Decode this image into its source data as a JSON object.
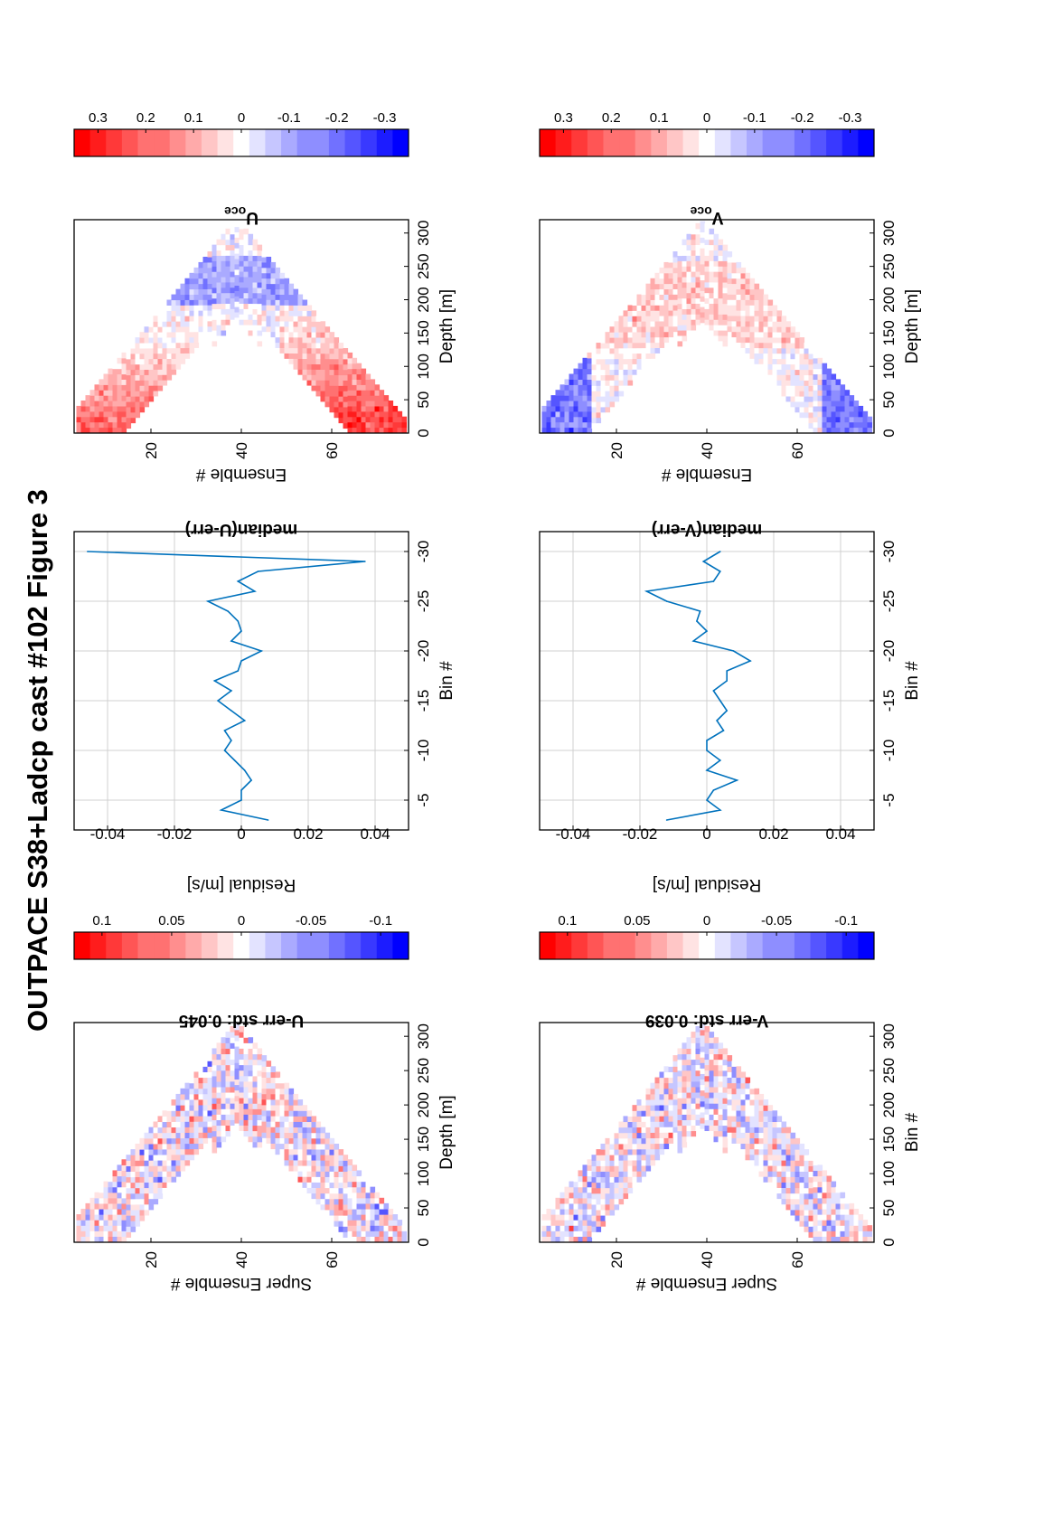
{
  "figure_title": "OUTPACE S38+Ladcp cast #102  Figure 3",
  "colors": {
    "positive": "#ff0000",
    "negative": "#0000ff",
    "zero": "#ffffff",
    "line": "#0072bd",
    "grid": "#d0d0d0"
  },
  "chart_data": [
    {
      "id": "u_err",
      "type": "heatmap",
      "title": "U-err std: 0.045",
      "xlabel": "Super Ensemble #",
      "ylabel": "Depth [m]",
      "xticks": [
        "20",
        "40",
        "60"
      ],
      "yticks": [
        "0",
        "50",
        "100",
        "150",
        "200",
        "250",
        "300"
      ],
      "xlim": [
        3,
        77
      ],
      "ylim": [
        0,
        320
      ],
      "y_reversed": true,
      "profile": "v-shape, max depth ~310 m at ensemble 39",
      "colorbar": {
        "ticks": [
          "0.1",
          "0.05",
          "0",
          "-0.05",
          "-0.1"
        ],
        "limits": [
          0.12,
          -0.12
        ]
      }
    },
    {
      "id": "u_median",
      "type": "line",
      "title": "median(U-err)",
      "xlabel": "Residual [m/s]",
      "ylabel": "Bin #",
      "xticks": [
        "-0.04",
        "-0.02",
        "0",
        "0.02",
        "0.04"
      ],
      "yticks": [
        "-5",
        "-10",
        "-15",
        "-20",
        "-25",
        "-30"
      ],
      "xlim": [
        -0.05,
        0.05
      ],
      "ylim": [
        -2,
        -32
      ],
      "grid": true,
      "x": [
        0.008,
        -0.006,
        0.0,
        0.0,
        0.003,
        0.001,
        -0.002,
        -0.005,
        -0.003,
        -0.005,
        0.001,
        -0.003,
        -0.007,
        -0.003,
        -0.008,
        -0.001,
        0.0,
        0.006,
        -0.003,
        0.0,
        -0.001,
        -0.004,
        -0.01,
        0.004,
        -0.001,
        0.005,
        0.037,
        -0.046
      ],
      "y": [
        -3,
        -4,
        -5,
        -6,
        -7,
        -8,
        -9,
        -10,
        -11,
        -12,
        -13,
        -14,
        -15,
        -16,
        -17,
        -18,
        -19,
        -20,
        -21,
        -22,
        -23,
        -24,
        -25,
        -26,
        -27,
        -28,
        -29,
        -30
      ]
    },
    {
      "id": "u_oce",
      "type": "heatmap",
      "title": "U",
      "title_sub": "oce",
      "xlabel": "Ensemble #",
      "ylabel": "Depth [m]",
      "xticks": [
        "20",
        "40",
        "60"
      ],
      "yticks": [
        "0",
        "50",
        "100",
        "150",
        "200",
        "250",
        "300"
      ],
      "xlim": [
        3,
        77
      ],
      "ylim": [
        0,
        320
      ],
      "y_reversed": true,
      "profile": "v-shape, red near surface (~0.15-0.25), blue near 230 m (~-0.15)",
      "colorbar": {
        "ticks": [
          "0.3",
          "0.2",
          "0.1",
          "0",
          "-0.1",
          "-0.2",
          "-0.3"
        ],
        "limits": [
          0.35,
          -0.35
        ]
      }
    },
    {
      "id": "v_err",
      "type": "heatmap",
      "title": "V-err std: 0.039",
      "xlabel": "Super Ensemble #",
      "ylabel": "Bin #",
      "xticks": [
        "20",
        "40",
        "60"
      ],
      "yticks": [
        "0",
        "50",
        "100",
        "150",
        "200",
        "250",
        "300"
      ],
      "xlim": [
        3,
        77
      ],
      "ylim": [
        0,
        320
      ],
      "y_reversed": true,
      "profile": "v-shape, max depth ~310 m at ensemble 39",
      "colorbar": {
        "ticks": [
          "0.1",
          "0.05",
          "0",
          "-0.05",
          "-0.1"
        ],
        "limits": [
          0.12,
          -0.12
        ]
      }
    },
    {
      "id": "v_median",
      "type": "line",
      "title": "median(V-err)",
      "xlabel": "Residual [m/s]",
      "ylabel": "Bin #",
      "xticks": [
        "-0.04",
        "-0.02",
        "0",
        "0.02",
        "0.04"
      ],
      "yticks": [
        "-5",
        "-10",
        "-15",
        "-20",
        "-25",
        "-30"
      ],
      "xlim": [
        -0.05,
        0.05
      ],
      "ylim": [
        -2,
        -32
      ],
      "grid": true,
      "x": [
        -0.012,
        0.004,
        0.0,
        0.002,
        0.009,
        0.0,
        0.004,
        0.0,
        0.0,
        0.005,
        0.003,
        0.006,
        0.004,
        0.002,
        0.006,
        0.006,
        0.013,
        0.008,
        -0.004,
        0.0,
        -0.003,
        -0.002,
        -0.012,
        -0.018,
        0.002,
        0.004,
        -0.001,
        0.004
      ],
      "y": [
        -3,
        -4,
        -5,
        -6,
        -7,
        -8,
        -9,
        -10,
        -11,
        -12,
        -13,
        -14,
        -15,
        -16,
        -17,
        -18,
        -19,
        -20,
        -21,
        -22,
        -23,
        -24,
        -25,
        -26,
        -27,
        -28,
        -29,
        -30
      ]
    },
    {
      "id": "v_oce",
      "type": "heatmap",
      "title": "V",
      "title_sub": "oce",
      "xlabel": "Ensemble #",
      "ylabel": "Depth [m]",
      "xticks": [
        "20",
        "40",
        "60"
      ],
      "yticks": [
        "0",
        "50",
        "100",
        "150",
        "200",
        "250",
        "300"
      ],
      "xlim": [
        3,
        77
      ],
      "ylim": [
        0,
        320
      ],
      "y_reversed": true,
      "profile": "v-shape, blue near surface (~-0.2), light red mid-depth",
      "colorbar": {
        "ticks": [
          "0.3",
          "0.2",
          "0.1",
          "0",
          "-0.1",
          "-0.2",
          "-0.3"
        ],
        "limits": [
          0.35,
          -0.35
        ]
      }
    }
  ]
}
